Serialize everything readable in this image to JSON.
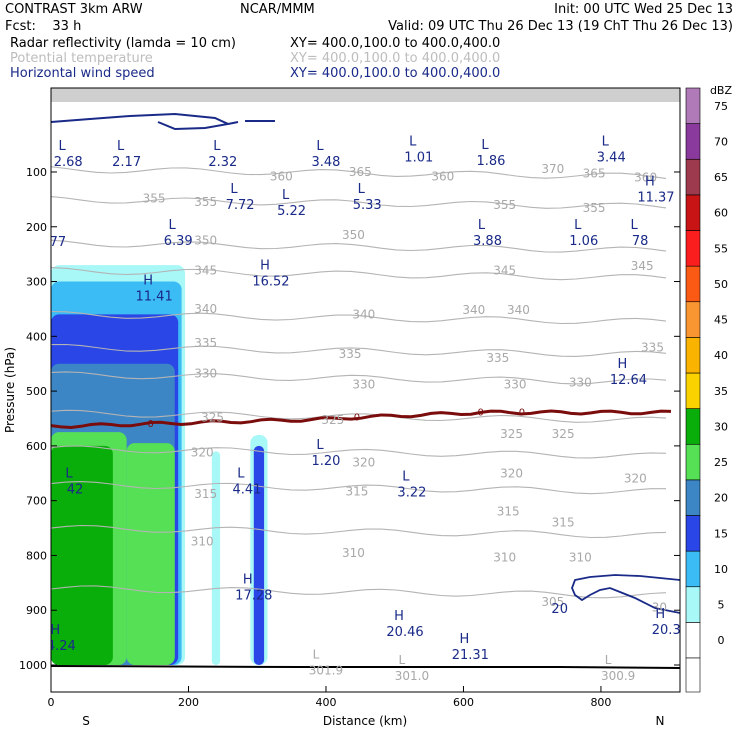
{
  "header": {
    "left_top": "CONTRAST  3km ARW",
    "center_top": "NCAR/MMM",
    "right_top": "Init: 00 UTC Wed 25 Dec 13",
    "fcst": "Fcst:    33 h",
    "valid": "Valid: 09 UTC Thu 26 Dec 13 (19 ChT Thu 26 Dec 13)",
    "fields": [
      {
        "name": "Radar reflectivity (lamda = 10 cm)",
        "xy": "XY= 400.0,100.0 to 400.0,400.0",
        "color": "#000000"
      },
      {
        "name": "Potential temperature",
        "xy": "XY= 400.0,100.0 to 400.0,400.0",
        "color": "#bdbdbd"
      },
      {
        "name": "Horizontal wind speed",
        "xy": "XY= 400.0,100.0 to 400.0,400.0",
        "color": "#1a2a88"
      }
    ]
  },
  "chart_data": {
    "type": "cross-section",
    "xlabel": "Distance (km)",
    "ylabel": "Pressure (hPa)",
    "xlim": [
      0,
      915
    ],
    "ylim": [
      1000,
      50
    ],
    "x_ticks": [
      "0",
      "200",
      "400",
      "600",
      "800"
    ],
    "y_ticks": [
      "100",
      "200",
      "300",
      "400",
      "500",
      "600",
      "700",
      "800",
      "900",
      "1000"
    ],
    "x_end_labels": [
      "S",
      "N"
    ],
    "colorbar": {
      "title": "dBZ",
      "labels": [
        "0",
        "5",
        "10",
        "15",
        "20",
        "25",
        "30",
        "35",
        "40",
        "45",
        "50",
        "55",
        "60",
        "65",
        "70",
        "75"
      ],
      "colors": [
        "#ffffff",
        "#a8f8f8",
        "#3cbcf4",
        "#2a46e6",
        "#3d86c6",
        "#56e056",
        "#0aae0a",
        "#fad200",
        "#fab400",
        "#fa9632",
        "#fa5a14",
        "#fa1e1e",
        "#c81414",
        "#9e3a4e",
        "#8a3a9c",
        "#b07ab8"
      ]
    },
    "reflectivity_zones": [
      {
        "dbz": 5,
        "x0": 0,
        "x1": 195,
        "p_top": 270
      },
      {
        "dbz": 10,
        "x0": 0,
        "x1": 190,
        "p_top": 300
      },
      {
        "dbz": 15,
        "x0": 0,
        "x1": 185,
        "p_top": 360
      },
      {
        "dbz": 20,
        "x0": 0,
        "x1": 180,
        "p_top": 450
      },
      {
        "dbz": 25,
        "x0": 0,
        "x1": 110,
        "p_top": 575
      },
      {
        "dbz": 30,
        "x0": 0,
        "x1": 90,
        "p_top": 600
      },
      {
        "dbz": 25,
        "x0": 110,
        "x1": 180,
        "p_top": 595
      },
      {
        "dbz": 5,
        "x0": 234,
        "x1": 246,
        "p_top": 610
      },
      {
        "dbz": 5,
        "x0": 290,
        "x1": 315,
        "p_top": 580
      },
      {
        "dbz": 15,
        "x0": 295,
        "x1": 310,
        "p_top": 600
      }
    ],
    "theta_contours": [
      {
        "value": 360,
        "p": 95
      },
      {
        "value": 355,
        "p": 150
      },
      {
        "value": 350,
        "p": 230
      },
      {
        "value": 345,
        "p": 280
      },
      {
        "value": 340,
        "p": 360
      },
      {
        "value": 335,
        "p": 420
      },
      {
        "value": 330,
        "p": 470
      },
      {
        "value": 325,
        "p": 540
      },
      {
        "value": 320,
        "p": 605
      },
      {
        "value": 315,
        "p": 670
      },
      {
        "value": 310,
        "p": 750
      },
      {
        "value": 305,
        "p": 860
      }
    ],
    "theta_labels": [
      {
        "text": "360",
        "x": 335,
        "p": 108
      },
      {
        "text": "365",
        "x": 450,
        "p": 100
      },
      {
        "text": "360",
        "x": 570,
        "p": 108
      },
      {
        "text": "370",
        "x": 730,
        "p": 95
      },
      {
        "text": "365",
        "x": 790,
        "p": 103
      },
      {
        "text": "360",
        "x": 865,
        "p": 110
      },
      {
        "text": "355",
        "x": 150,
        "p": 148
      },
      {
        "text": "355",
        "x": 225,
        "p": 155
      },
      {
        "text": "355",
        "x": 660,
        "p": 160
      },
      {
        "text": "355",
        "x": 790,
        "p": 166
      },
      {
        "text": "350",
        "x": 225,
        "p": 225
      },
      {
        "text": "350",
        "x": 440,
        "p": 215
      },
      {
        "text": "345",
        "x": 225,
        "p": 280
      },
      {
        "text": "345",
        "x": 660,
        "p": 280
      },
      {
        "text": "345",
        "x": 860,
        "p": 272
      },
      {
        "text": "340",
        "x": 225,
        "p": 350
      },
      {
        "text": "340",
        "x": 455,
        "p": 360
      },
      {
        "text": "340",
        "x": 615,
        "p": 352
      },
      {
        "text": "340",
        "x": 680,
        "p": 352
      },
      {
        "text": "335",
        "x": 225,
        "p": 412
      },
      {
        "text": "335",
        "x": 435,
        "p": 432
      },
      {
        "text": "335",
        "x": 650,
        "p": 440
      },
      {
        "text": "335",
        "x": 875,
        "p": 420
      },
      {
        "text": "330",
        "x": 225,
        "p": 468
      },
      {
        "text": "330",
        "x": 455,
        "p": 488
      },
      {
        "text": "330",
        "x": 675,
        "p": 488
      },
      {
        "text": "330",
        "x": 770,
        "p": 484
      },
      {
        "text": "325",
        "x": 235,
        "p": 548
      },
      {
        "text": "325",
        "x": 410,
        "p": 553
      },
      {
        "text": "325",
        "x": 670,
        "p": 578
      },
      {
        "text": "325",
        "x": 745,
        "p": 578
      },
      {
        "text": "320",
        "x": 220,
        "p": 612
      },
      {
        "text": "320",
        "x": 455,
        "p": 630
      },
      {
        "text": "320",
        "x": 670,
        "p": 650
      },
      {
        "text": "320",
        "x": 850,
        "p": 660
      },
      {
        "text": "315",
        "x": 225,
        "p": 688
      },
      {
        "text": "315",
        "x": 445,
        "p": 683
      },
      {
        "text": "315",
        "x": 665,
        "p": 720
      },
      {
        "text": "315",
        "x": 745,
        "p": 740
      },
      {
        "text": "310",
        "x": 220,
        "p": 775
      },
      {
        "text": "310",
        "x": 440,
        "p": 796
      },
      {
        "text": "310",
        "x": 660,
        "p": 804
      },
      {
        "text": "310",
        "x": 770,
        "p": 804
      },
      {
        "text": "305",
        "x": 730,
        "p": 885
      },
      {
        "text": "30",
        "x": 885,
        "p": 895
      }
    ],
    "freezing_level": {
      "value": "0",
      "p": 550,
      "labels_x": [
        145,
        445,
        625,
        685
      ]
    },
    "wind_labels": [
      {
        "text": "2.68",
        "x": 25,
        "p": 82,
        "type": "L"
      },
      {
        "text": "2.17",
        "x": 110,
        "p": 82,
        "type": "L"
      },
      {
        "text": "2.32",
        "x": 250,
        "p": 82,
        "type": "L"
      },
      {
        "text": "3.48",
        "x": 400,
        "p": 82,
        "type": "L"
      },
      {
        "text": "1.01",
        "x": 535,
        "p": 74,
        "type": "L"
      },
      {
        "text": "1.86",
        "x": 640,
        "p": 80,
        "type": "L"
      },
      {
        "text": "3.44",
        "x": 815,
        "p": 74,
        "type": "L"
      },
      {
        "text": "11.37",
        "x": 880,
        "p": 147,
        "type": "H"
      },
      {
        "text": "7.72",
        "x": 275,
        "p": 160,
        "type": "L"
      },
      {
        "text": "5.22",
        "x": 350,
        "p": 171,
        "type": "L"
      },
      {
        "text": "5.33",
        "x": 460,
        "p": 160,
        "type": "L"
      },
      {
        "text": "77",
        "x": 10,
        "p": 228,
        "type": ""
      },
      {
        "text": "6.39",
        "x": 185,
        "p": 226,
        "type": "L"
      },
      {
        "text": "3.88",
        "x": 635,
        "p": 226,
        "type": "L"
      },
      {
        "text": "1.06",
        "x": 775,
        "p": 226,
        "type": "L"
      },
      {
        "text": "78",
        "x": 857,
        "p": 226,
        "type": "L"
      },
      {
        "text": "11.41",
        "x": 150,
        "p": 327,
        "type": "H"
      },
      {
        "text": "16.52",
        "x": 320,
        "p": 300,
        "type": "H"
      },
      {
        "text": "12.64",
        "x": 840,
        "p": 480,
        "type": "H"
      },
      {
        "text": "1.20",
        "x": 400,
        "p": 628,
        "type": "L"
      },
      {
        "text": "42",
        "x": 35,
        "p": 680,
        "type": "L"
      },
      {
        "text": "4.41",
        "x": 285,
        "p": 680,
        "type": "L"
      },
      {
        "text": "3.22",
        "x": 525,
        "p": 685,
        "type": "L"
      },
      {
        "text": "17.28",
        "x": 295,
        "p": 873,
        "type": "H"
      },
      {
        "text": "20.46",
        "x": 515,
        "p": 940,
        "type": "H"
      },
      {
        "text": "21.31",
        "x": 610,
        "p": 982,
        "type": "H"
      },
      {
        "text": "20",
        "x": 740,
        "p": 898,
        "type": ""
      },
      {
        "text": "20.3",
        "x": 895,
        "p": 936,
        "type": "H"
      },
      {
        "text": "4.24",
        "x": 15,
        "p": 965,
        "type": "H"
      }
    ],
    "surface_labels": [
      {
        "text": "301.9",
        "x": 400,
        "p": 1010,
        "type": "L"
      },
      {
        "text": "301.0",
        "x": 525,
        "p": 1020,
        "type": "L"
      },
      {
        "text": "300.9",
        "x": 825,
        "p": 1020,
        "type": "L"
      }
    ]
  }
}
